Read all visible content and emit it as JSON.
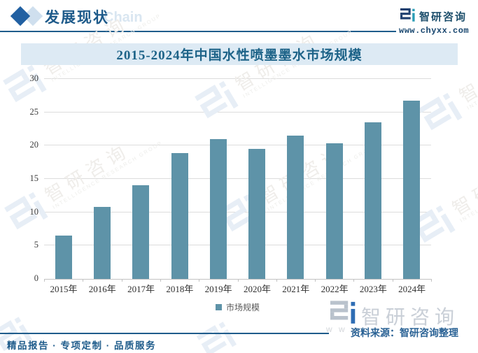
{
  "header": {
    "section_title": "发展现状",
    "decor_word": "Chain",
    "brand": "智研咨询",
    "website": "www.chyxx.com"
  },
  "chart_data": {
    "type": "bar",
    "title": "2015-2024年中国水性喷墨墨水市场规模",
    "categories": [
      "2015年",
      "2016年",
      "2017年",
      "2018年",
      "2019年",
      "2020年",
      "2021年",
      "2022年",
      "2023年",
      "2024年"
    ],
    "series": [
      {
        "name": "市场规模",
        "values": [
          6.5,
          10.8,
          14.1,
          18.9,
          21.0,
          19.5,
          21.5,
          20.3,
          23.5,
          26.7
        ]
      }
    ],
    "ylim": [
      0,
      30
    ],
    "yticks": [
      0,
      5,
      10,
      15,
      20,
      25,
      30
    ],
    "grid": true,
    "legend_position": "bottom",
    "bar_color": "#5e93a8"
  },
  "watermark": {
    "cn": "智研咨询",
    "en": "INTELLIGENCE RESEARCH GROUP",
    "www": "w w w"
  },
  "footer": {
    "tagline": "精品报告 · 专项定制 · 品质服务",
    "source": "资料来源：智研咨询整理",
    "brand": "智研咨询"
  },
  "colors": {
    "accent_dark_blue": "#1f5c8b",
    "bar": "#5e93a8",
    "banner_bg": "#ddeaf4",
    "title_text": "#1d6388",
    "source_text": "#2a6295"
  }
}
